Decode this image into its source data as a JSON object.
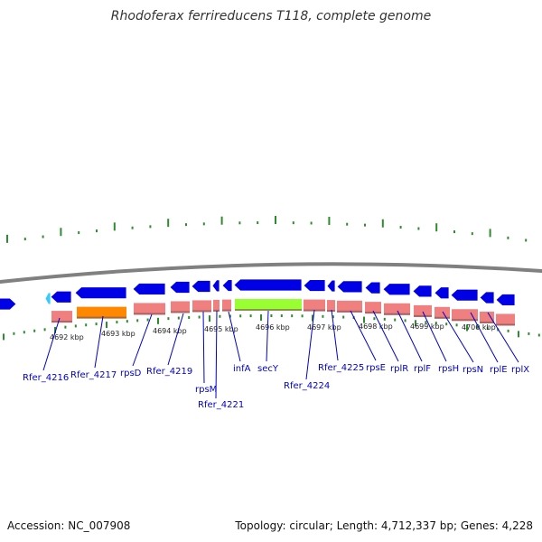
{
  "title": "Rhodoferax ferrireducens T118, complete genome",
  "footer": {
    "accession": "Accession: NC_007908",
    "stats": "Topology: circular; Length: 4,712,337 bp; Genes: 4,228"
  },
  "colors": {
    "backbone": "#808080",
    "cds": "#0000e6",
    "cds_highlight": "#33ccff",
    "gene_default": "#f08080",
    "gene_orange": "#ff8800",
    "gene_green": "#99ff33",
    "tick": "#2e8b2e",
    "tick_label": "#222222",
    "gene_label": "#0000cc",
    "leader": "#0000cc"
  },
  "kbp_ticks": [
    "4692 kbp",
    "4693 kbp",
    "4694 kbp",
    "4695 kbp",
    "4696 kbp",
    "4697 kbp",
    "4698 kbp",
    "4699 kbp",
    "4700 kbp"
  ],
  "gene_labels": [
    "Rfer_4216",
    "Rfer_4217",
    "rpsD",
    "Rfer_4219",
    "rpsM",
    "Rfer_4221",
    "infA",
    "secY",
    "Rfer_4224",
    "Rfer_4225",
    "rpsE",
    "rplR",
    "rplF",
    "rpsH",
    "rpsN",
    "rplE",
    "rplX"
  ]
}
